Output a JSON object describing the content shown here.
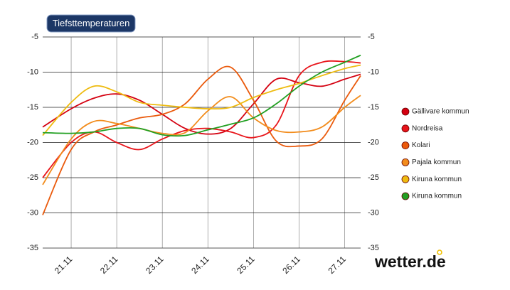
{
  "chart_data": {
    "type": "line",
    "title": "Tiefsttemperaturen",
    "logo": "wetter.de",
    "x": [
      20.375,
      21,
      21.5,
      22,
      22.5,
      23,
      23.5,
      24,
      24.5,
      25,
      25.5,
      26,
      26.5,
      27,
      27.35
    ],
    "xlim": [
      20.375,
      27.35
    ],
    "xticks": [
      {
        "value": 21,
        "label": "21.11"
      },
      {
        "value": 22,
        "label": "22.11"
      },
      {
        "value": 23,
        "label": "23.11"
      },
      {
        "value": 24,
        "label": "24.11"
      },
      {
        "value": 25,
        "label": "25.11"
      },
      {
        "value": 26,
        "label": "26.11"
      },
      {
        "value": 27,
        "label": "27.11"
      }
    ],
    "ylim": [
      -35,
      -5
    ],
    "yticks": [
      -35,
      -30,
      -25,
      -20,
      -15,
      -10,
      -5
    ],
    "y2lim": [
      -35,
      -5
    ],
    "y2ticks": [
      -35,
      -30,
      -25,
      -20,
      -15,
      -10,
      -5
    ],
    "grid": true,
    "legend": "right",
    "series": [
      {
        "name": "Gällivare kommun",
        "color": "#d40010",
        "values": [
          -17.8,
          -15.2,
          -13.7,
          -13.1,
          -14,
          -16,
          -18,
          -18.8,
          -18,
          -14.5,
          -11,
          -11.5,
          -12,
          -11,
          -10.3
        ]
      },
      {
        "name": "Nordreisa",
        "color": "#e8141a",
        "values": [
          -25,
          -20,
          -18.5,
          -20,
          -21,
          -19.5,
          -18.3,
          -18,
          -18.5,
          -19.3,
          -17.5,
          -10.5,
          -8.6,
          -8.5,
          -8.7
        ]
      },
      {
        "name": "Kolari",
        "color": "#ea5a0c",
        "values": [
          -30.3,
          -21,
          -18.5,
          -17.5,
          -16.5,
          -16,
          -14.5,
          -11,
          -9.3,
          -14,
          -19.8,
          -20.5,
          -19.5,
          -14,
          -10.5
        ]
      },
      {
        "name": "Pajala kommun",
        "color": "#f28c1c",
        "values": [
          -26,
          -19.5,
          -17,
          -17.3,
          -18,
          -18.7,
          -18.6,
          -15.5,
          -13.5,
          -16.5,
          -18.3,
          -18.5,
          -17.8,
          -15,
          -13.3
        ]
      },
      {
        "name": "Kiruna kommun",
        "color": "#eebb10",
        "values": [
          -19,
          -14.3,
          -12,
          -12.8,
          -14.3,
          -14.7,
          -15,
          -15.2,
          -15,
          -13.6,
          -12.5,
          -11.6,
          -10.5,
          -9.5,
          -9
        ]
      },
      {
        "name": "Kiruna kommun",
        "color": "#22a022",
        "values": [
          -18.6,
          -18.7,
          -18.5,
          -18,
          -18,
          -18.9,
          -19,
          -18.2,
          -17.4,
          -16.5,
          -14.5,
          -12,
          -10,
          -8.6,
          -7.6
        ]
      }
    ]
  }
}
